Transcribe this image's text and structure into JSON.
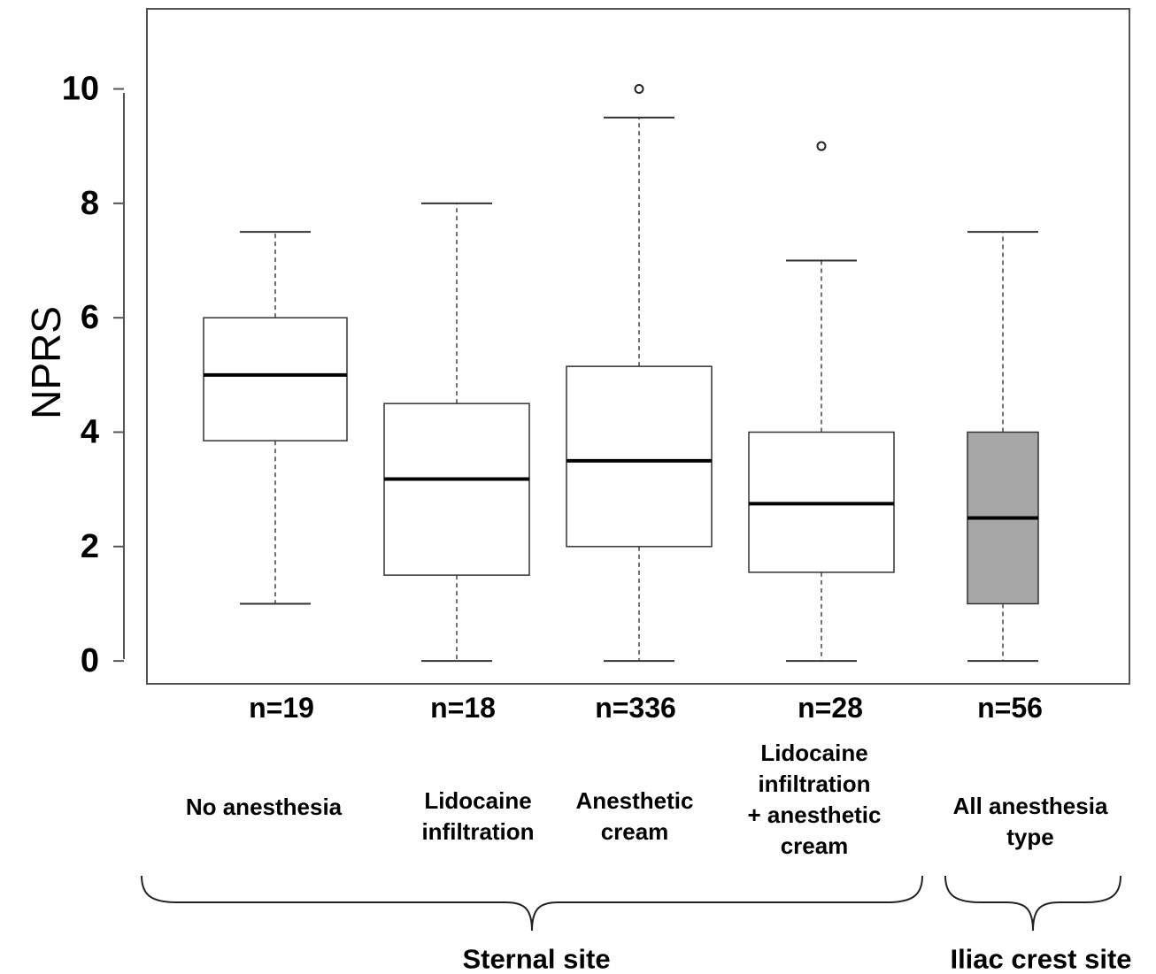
{
  "chart_data": {
    "type": "box",
    "ylabel": "NPRS",
    "ylim": [
      -0.4,
      11.4
    ],
    "yticks": [
      0,
      2,
      4,
      6,
      8,
      10
    ],
    "grid": false,
    "groups": [
      {
        "n_label": "n=19",
        "category": [
          "No anesthesia"
        ],
        "whisker_low": 1,
        "q1": 3.85,
        "median": 5,
        "q3": 6,
        "whisker_high": 7.5,
        "outliers": [],
        "fill": "#ffffff"
      },
      {
        "n_label": "n=18",
        "category": [
          "Lidocaine",
          "infiltration"
        ],
        "whisker_low": 0,
        "q1": 1.5,
        "median": 3.18,
        "q3": 4.5,
        "whisker_high": 8,
        "outliers": [],
        "fill": "#ffffff"
      },
      {
        "n_label": "n=336",
        "category": [
          "Anesthetic",
          "cream"
        ],
        "whisker_low": 0,
        "q1": 2,
        "median": 3.5,
        "q3": 5.15,
        "whisker_high": 9.5,
        "outliers": [
          10
        ],
        "fill": "#ffffff"
      },
      {
        "n_label": "n=28",
        "category": [
          "Lidocaine",
          "infiltration",
          "+ anesthetic",
          "cream"
        ],
        "whisker_low": 0,
        "q1": 1.55,
        "median": 2.75,
        "q3": 4,
        "whisker_high": 7,
        "outliers": [
          9
        ],
        "fill": "#ffffff"
      },
      {
        "n_label": "n=56",
        "category": [
          "All anesthesia",
          "type"
        ],
        "whisker_low": 0,
        "q1": 1,
        "median": 2.5,
        "q3": 4,
        "whisker_high": 7.5,
        "outliers": [],
        "fill": "#a6a6a6"
      }
    ],
    "site_groups": [
      {
        "label": "Sternal site",
        "members": [
          0,
          1,
          2,
          3
        ]
      },
      {
        "label": "Iliac crest site",
        "members": [
          4
        ]
      }
    ]
  }
}
